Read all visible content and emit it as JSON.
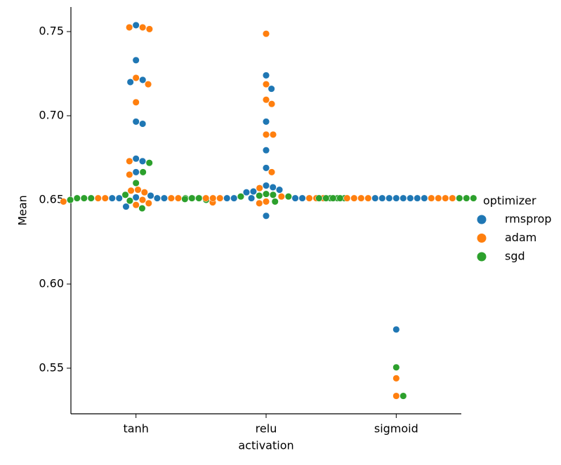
{
  "chart_data": {
    "type": "swarm",
    "x_label": "activation",
    "y_label": "Mean",
    "categories": [
      "tanh",
      "relu",
      "sigmoid"
    ],
    "ylim": [
      0.5229,
      0.7646
    ],
    "yticks": [
      0.55,
      {
        "value": 0.6,
        "label": "0.60"
      },
      0.65,
      {
        "value": 0.7,
        "label": "0.70"
      },
      0.75
    ],
    "legend_title": "optimizer",
    "legend_position": "right",
    "series": [
      {
        "name": "rmsprop",
        "color": "#1f77b4",
        "values": [
          [
            0.7538,
            0.733,
            0.7213,
            0.72,
            0.6965,
            0.6952,
            0.6745,
            0.673,
            0.6665,
            0.6525,
            0.6515,
            0.651,
            0.651,
            0.651,
            0.651,
            0.646
          ],
          [
            0.724,
            0.716,
            0.6965,
            0.6795,
            0.669,
            0.6585,
            0.6575,
            0.656,
            0.655,
            0.6545,
            0.651,
            0.651,
            0.651,
            0.651,
            0.651,
            0.6405
          ],
          [
            0.651,
            0.651,
            0.651,
            0.651,
            0.651,
            0.651,
            0.651,
            0.651,
            0.573
          ]
        ]
      },
      {
        "name": "adam",
        "color": "#ff7f0e",
        "values": [
          [
            0.7525,
            0.7515,
            0.7525,
            0.7225,
            0.7187,
            0.708,
            0.673,
            0.665,
            0.656,
            0.6555,
            0.6545,
            0.651,
            0.651,
            0.651,
            0.651,
            0.65,
            0.649,
            0.6485,
            0.648,
            0.647
          ],
          [
            0.7487,
            0.7187,
            0.7095,
            0.707,
            0.6888,
            0.6888,
            0.6665,
            0.657,
            0.652,
            0.651,
            0.651,
            0.651,
            0.651,
            0.651,
            0.651,
            0.649,
            0.648
          ],
          [
            0.651,
            0.651,
            0.651,
            0.651,
            0.651,
            0.651,
            0.651,
            0.651,
            0.544,
            0.5335
          ]
        ]
      },
      {
        "name": "sgd",
        "color": "#2ca02c",
        "values": [
          [
            0.672,
            0.6665,
            0.66,
            0.653,
            0.651,
            0.651,
            0.651,
            0.651,
            0.651,
            0.651,
            0.65,
            0.6495,
            0.65,
            0.645
          ],
          [
            0.653,
            0.6535,
            0.652,
            0.652,
            0.6525,
            0.651,
            0.651,
            0.651,
            0.651,
            0.6505,
            0.649,
            0.651
          ],
          [
            0.651,
            0.651,
            0.651,
            0.651,
            0.651,
            0.651,
            0.651,
            0.5505,
            0.5335
          ]
        ]
      }
    ]
  }
}
